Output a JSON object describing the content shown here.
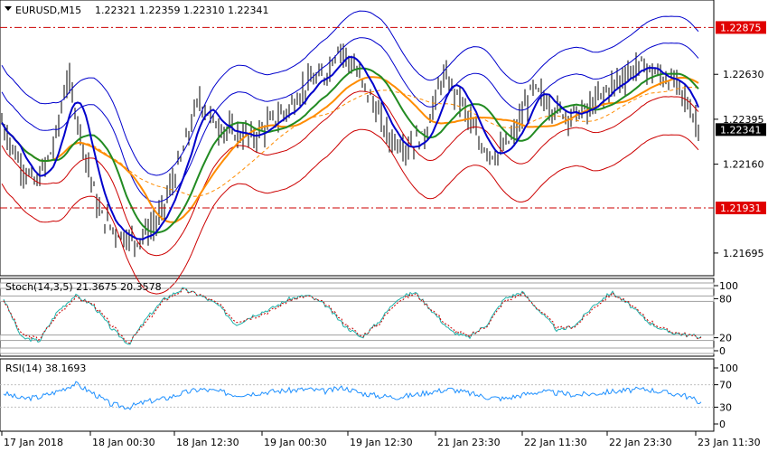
{
  "header": {
    "symbol": "EURUSD,M15",
    "ohlc": "1.22321 1.22359 1.22310 1.22341"
  },
  "colors": {
    "candle": "#000000",
    "bands_outer": "#0000cc",
    "bands_inner": "#cc0000",
    "ma_fast": "#0000cc",
    "ma_mid": "#228b22",
    "ma_slow": "#ff8c00",
    "ma_slow_dashed": "#ff8c00",
    "level_line": "#cc0000",
    "tag_red": "#e00000",
    "tag_black": "#000000",
    "stoch_main": "#20b2aa",
    "stoch_signal": "#cc0000",
    "rsi": "#1e90ff",
    "grid": "#c0c0c0"
  },
  "chart_data": [
    {
      "type": "candlestick",
      "title": "EURUSD,M15",
      "ylim": [
        1.216,
        1.23
      ],
      "y_ticks": [
        "1.22630",
        "1.22395",
        "1.22160",
        "1.21695"
      ],
      "price_tags": [
        {
          "label": "1.22875",
          "value": 1.22875,
          "style": "red"
        },
        {
          "label": "1.22341",
          "value": 1.22341,
          "style": "black"
        },
        {
          "label": "1.21931",
          "value": 1.21931,
          "style": "red"
        }
      ],
      "horizontal_levels": [
        1.22875,
        1.21931
      ],
      "price_profile": {
        "note_x": [
          0,
          20,
          40,
          60,
          75,
          90,
          110,
          130,
          150,
          175,
          200,
          220,
          240,
          260,
          280,
          300,
          320,
          340,
          360,
          375,
          390,
          410,
          430,
          450,
          470,
          490,
          510,
          530,
          550,
          570,
          590,
          610,
          630,
          650,
          670,
          690,
          710,
          730,
          750,
          775
        ],
        "close": [
          1.224,
          1.2218,
          1.2205,
          1.2226,
          1.2262,
          1.2231,
          1.219,
          1.218,
          1.2176,
          1.2186,
          1.2218,
          1.225,
          1.2236,
          1.2232,
          1.223,
          1.2238,
          1.2245,
          1.2258,
          1.2262,
          1.2278,
          1.2268,
          1.2251,
          1.223,
          1.2225,
          1.2231,
          1.2262,
          1.225,
          1.2227,
          1.222,
          1.2232,
          1.2256,
          1.2246,
          1.2242,
          1.2244,
          1.2254,
          1.2262,
          1.2268,
          1.2262,
          1.2258,
          1.2234
        ]
      }
    },
    {
      "type": "line",
      "title": "Stoch(14,3,5) 21.3675 20.3578",
      "ylim": [
        0,
        100
      ],
      "y_ticks": [
        "100",
        "80",
        "20",
        "0"
      ],
      "levels": [
        80,
        20
      ],
      "series": [
        {
          "name": "main",
          "values": [
            80,
            20,
            15,
            60,
            85,
            70,
            35,
            10,
            50,
            80,
            95,
            85,
            70,
            40,
            55,
            65,
            80,
            85,
            70,
            40,
            20,
            45,
            80,
            90,
            60,
            30,
            20,
            40,
            80,
            90,
            60,
            30,
            40,
            70,
            90,
            70,
            45,
            30,
            25,
            21
          ]
        },
        {
          "name": "signal",
          "values": [
            78,
            25,
            18,
            55,
            82,
            72,
            40,
            12,
            45,
            78,
            93,
            86,
            72,
            45,
            52,
            62,
            78,
            84,
            72,
            44,
            22,
            42,
            76,
            88,
            62,
            34,
            22,
            38,
            76,
            88,
            62,
            34,
            38,
            66,
            88,
            72,
            48,
            32,
            26,
            20
          ]
        }
      ]
    },
    {
      "type": "line",
      "title": "RSI(14) 38.1693",
      "ylim": [
        0,
        100
      ],
      "y_ticks": [
        "100",
        "70",
        "30",
        "0"
      ],
      "levels": [
        70,
        30
      ],
      "series": [
        {
          "name": "rsi",
          "values": [
            55,
            45,
            48,
            58,
            72,
            55,
            35,
            30,
            40,
            45,
            55,
            62,
            58,
            52,
            55,
            58,
            60,
            62,
            58,
            65,
            55,
            50,
            48,
            52,
            58,
            62,
            55,
            48,
            45,
            52,
            58,
            55,
            52,
            54,
            58,
            60,
            62,
            56,
            52,
            38
          ]
        }
      ]
    }
  ],
  "x_axis": {
    "labels": [
      "17 Jan 2018",
      "18 Jan 00:30",
      "18 Jan 12:30",
      "19 Jan 00:30",
      "19 Jan 12:30",
      "21 Jan 23:30",
      "22 Jan 11:30",
      "22 Jan 23:30",
      "23 Jan 11:30"
    ]
  }
}
